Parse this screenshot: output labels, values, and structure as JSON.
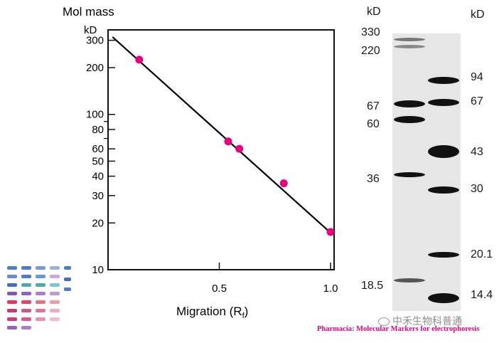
{
  "chart_data": {
    "type": "scatter",
    "title": "Mol mass",
    "unit_label": "kD",
    "xlabel_main": "Migration (R",
    "xlabel_sub": "f",
    "xlabel_close": ")",
    "xlim": [
      0,
      1.0
    ],
    "ylim": [
      10,
      350
    ],
    "yscale": "log",
    "xticks": [
      0.5,
      1.0
    ],
    "xtick_labels": [
      "0.5",
      "1.0"
    ],
    "yticks": [
      300,
      200,
      100,
      80,
      60,
      50,
      40,
      30,
      20,
      10
    ],
    "ytick_labels": [
      "300",
      "200",
      "100",
      "80",
      "60",
      "50",
      "40",
      "30",
      "20",
      "10"
    ],
    "ytick_marks_unlabeled": [
      70,
      90
    ],
    "points": [
      {
        "x": 0.14,
        "y": 225
      },
      {
        "x": 0.54,
        "y": 67
      },
      {
        "x": 0.59,
        "y": 60
      },
      {
        "x": 0.79,
        "y": 36
      },
      {
        "x": 1.0,
        "y": 17.5
      }
    ],
    "fit_line": {
      "x": [
        0.02,
        1.0
      ],
      "y": [
        315,
        17.3
      ]
    },
    "point_color": "#e6007e",
    "line_color": "#000000"
  },
  "gel": {
    "left_header": "kD",
    "right_header": "kD",
    "left_markers": [
      "330",
      "220",
      "67",
      "60",
      "36",
      "18.5"
    ],
    "right_markers": [
      "94",
      "67",
      "43",
      "30",
      "20.1",
      "14.4"
    ]
  },
  "footer": {
    "credit": "Pharmacia: Molecular Markers for electrophoresis",
    "watermark": "中禾生物科普通",
    "credit_color": "#e6007e"
  }
}
